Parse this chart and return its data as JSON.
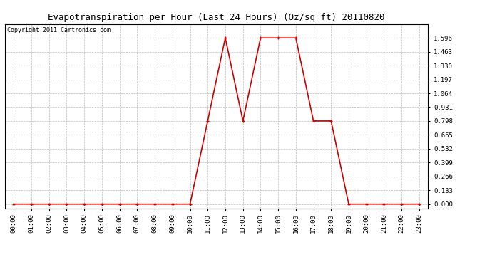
{
  "title": "Evapotranspiration per Hour (Last 24 Hours) (Oz/sq ft) 20110820",
  "copyright": "Copyright 2011 Cartronics.com",
  "x_labels": [
    "00:00",
    "01:00",
    "02:00",
    "03:00",
    "04:00",
    "05:00",
    "06:00",
    "07:00",
    "08:00",
    "09:00",
    "10:00",
    "11:00",
    "12:00",
    "13:00",
    "14:00",
    "15:00",
    "16:00",
    "17:00",
    "18:00",
    "19:00",
    "20:00",
    "21:00",
    "22:00",
    "23:00"
  ],
  "y_values": [
    0.0,
    0.0,
    0.0,
    0.0,
    0.0,
    0.0,
    0.0,
    0.0,
    0.0,
    0.0,
    0.0,
    0.798,
    1.596,
    0.798,
    1.596,
    1.596,
    1.596,
    0.798,
    0.798,
    0.0,
    0.0,
    0.0,
    0.0,
    0.0
  ],
  "line_color": "#cc0000",
  "marker_color": "#cc0000",
  "bg_color": "#ffffff",
  "plot_bg_color": "#ffffff",
  "grid_color": "#bbbbbb",
  "title_fontsize": 9,
  "copyright_fontsize": 6,
  "y_max": 1.729,
  "y_min": -0.04,
  "y_ticks": [
    0.0,
    0.133,
    0.266,
    0.399,
    0.532,
    0.665,
    0.798,
    0.931,
    1.064,
    1.197,
    1.33,
    1.463,
    1.596
  ],
  "marker_size": 3,
  "line_width": 1.2
}
